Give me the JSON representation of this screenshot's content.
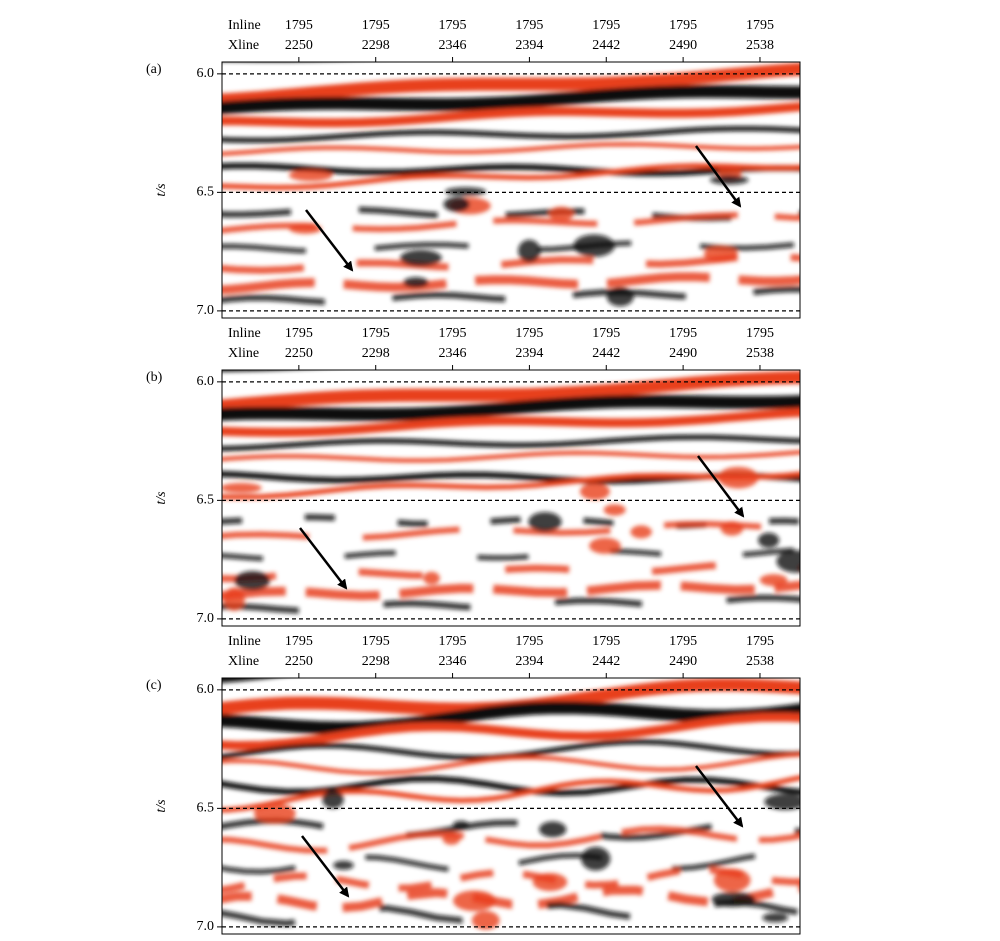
{
  "chart_data": [
    {
      "type": "seismic",
      "panel_label": "(a)",
      "ylabel": "t/s",
      "x_rows": [
        "Inline",
        "Xline"
      ],
      "inline": [
        1795,
        1795,
        1795,
        1795,
        1795,
        1795,
        1795
      ],
      "xticks": [
        2250,
        2298,
        2346,
        2394,
        2442,
        2490,
        2538
      ],
      "xlim": [
        2202,
        2563
      ],
      "ylim": [
        5.95,
        7.03
      ],
      "yticks": [
        {
          "value": 6,
          "label": "6.0"
        },
        {
          "value": 6.5,
          "label": "6.5"
        },
        {
          "value": 7,
          "label": "7.0"
        }
      ],
      "grid": true
    },
    {
      "type": "seismic",
      "panel_label": "(b)",
      "ylabel": "t/s",
      "x_rows": [
        "Inline",
        "Xline"
      ],
      "inline": [
        1795,
        1795,
        1795,
        1795,
        1795,
        1795,
        1795
      ],
      "xticks": [
        2250,
        2298,
        2346,
        2394,
        2442,
        2490,
        2538
      ],
      "xlim": [
        2202,
        2563
      ],
      "ylim": [
        5.95,
        7.03
      ],
      "yticks": [
        {
          "value": 6,
          "label": "6.0"
        },
        {
          "value": 6.5,
          "label": "6.5"
        },
        {
          "value": 7,
          "label": "7.0"
        }
      ],
      "grid": true
    },
    {
      "type": "seismic",
      "panel_label": "(c)",
      "ylabel": "t/s",
      "x_rows": [
        "Inline",
        "Xline"
      ],
      "inline": [
        1795,
        1795,
        1795,
        1795,
        1795,
        1795,
        1795
      ],
      "xticks": [
        2250,
        2298,
        2346,
        2394,
        2442,
        2490,
        2538
      ],
      "xlim": [
        2202,
        2563
      ],
      "ylim": [
        5.95,
        7.03
      ],
      "yticks": [
        {
          "value": 6,
          "label": "6.0"
        },
        {
          "value": 6.5,
          "label": "6.5"
        },
        {
          "value": 7,
          "label": "7.0"
        }
      ],
      "grid": true
    }
  ]
}
